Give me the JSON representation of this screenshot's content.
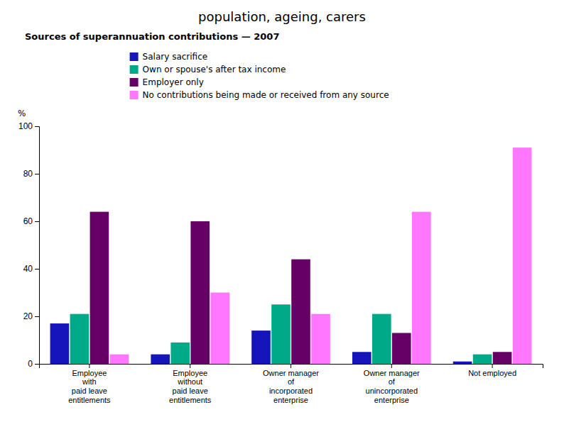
{
  "chart_data": {
    "type": "bar",
    "title": "population, ageing, carers",
    "subtitle": "Sources of superannuation contributions — 2007",
    "categories": [
      "Employee\nwith\npaid leave\nentitlements",
      "Employee\nwithout\npaid leave\nentitlements",
      "Owner manager\nof\nincorporated\nenterprise",
      "Owner manager\nof\nunincorporated\nenterprise",
      "Not employed"
    ],
    "series": [
      {
        "name": "Salary sacrifice",
        "color": "#1515BB",
        "values": [
          17,
          4,
          14,
          5,
          1
        ]
      },
      {
        "name": "Own or spouse's after tax income",
        "color": "#00AA88",
        "values": [
          21,
          9,
          25,
          21,
          4
        ]
      },
      {
        "name": "Employer only",
        "color": "#660066",
        "values": [
          64,
          60,
          44,
          13,
          5
        ]
      },
      {
        "name": "No contributions being made or received from any source",
        "color": "#FF77FF",
        "values": [
          4,
          30,
          21,
          64,
          91
        ]
      }
    ],
    "ylabel": "%",
    "ylim": [
      0,
      100
    ],
    "yticks": [
      0,
      20,
      40,
      60,
      80,
      100
    ],
    "grid": false,
    "legend": "upper left"
  }
}
